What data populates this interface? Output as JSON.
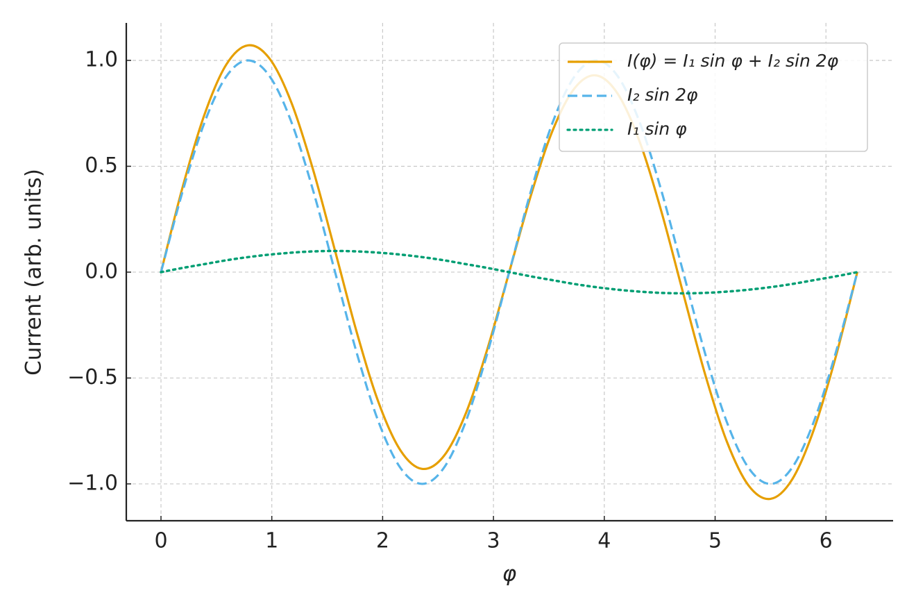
{
  "chart_data": {
    "type": "line",
    "x_label": "φ",
    "y_label": "Current (arb. units)",
    "x": [
      0,
      0.196,
      0.393,
      0.589,
      0.785,
      0.982,
      1.178,
      1.374,
      1.571,
      1.767,
      1.963,
      2.16,
      2.356,
      2.553,
      2.749,
      2.945,
      3.142,
      3.338,
      3.534,
      3.731,
      3.927,
      4.123,
      4.32,
      4.516,
      4.712,
      4.909,
      5.105,
      5.301,
      5.498,
      5.694,
      5.89,
      6.087,
      6.283
    ],
    "series": [
      {
        "name": "I(φ) = I₁ sin φ + I₂ sin 2φ",
        "color": "#e69f00",
        "dash": "solid",
        "values": [
          0,
          0.403,
          0.745,
          0.98,
          1.071,
          1.007,
          0.799,
          0.481,
          0.1,
          -0.285,
          -0.615,
          -0.841,
          -0.929,
          -0.868,
          -0.669,
          -0.363,
          0,
          0.363,
          0.669,
          0.868,
          0.929,
          0.841,
          0.615,
          0.285,
          -0.1,
          -0.481,
          -0.799,
          -1.007,
          -1.071,
          -0.98,
          -0.745,
          -0.403,
          0
        ]
      },
      {
        "name": "I₂ sin 2φ",
        "color": "#56b4e9",
        "dash": "dashed",
        "values": [
          0,
          0.383,
          0.707,
          0.924,
          1,
          0.924,
          0.707,
          0.383,
          0,
          -0.383,
          -0.707,
          -0.924,
          -1,
          -0.924,
          -0.707,
          -0.383,
          0,
          0.383,
          0.707,
          0.924,
          1,
          0.924,
          0.707,
          0.383,
          0,
          -0.383,
          -0.707,
          -0.924,
          -1,
          -0.924,
          -0.707,
          -0.383,
          0
        ]
      },
      {
        "name": "I₁ sin φ",
        "color": "#009e73",
        "dash": "dotted",
        "values": [
          0,
          0.02,
          0.038,
          0.056,
          0.071,
          0.083,
          0.092,
          0.098,
          0.1,
          0.098,
          0.092,
          0.083,
          0.071,
          0.056,
          0.038,
          0.02,
          0,
          -0.02,
          -0.038,
          -0.056,
          -0.071,
          -0.083,
          -0.092,
          -0.098,
          -0.1,
          -0.098,
          -0.092,
          -0.083,
          -0.071,
          -0.056,
          -0.038,
          -0.02,
          0
        ]
      }
    ],
    "xlim": [
      -0.313,
      6.606
    ],
    "ylim": [
      -1.174,
      1.177
    ],
    "xticks": [
      0,
      1,
      2,
      3,
      4,
      5,
      6
    ],
    "yticks": [
      {
        "value": -1,
        "label": "−1.0"
      },
      {
        "value": -0.5,
        "label": "−0.5"
      },
      {
        "value": 0,
        "label": "0.0"
      },
      {
        "value": 0.5,
        "label": "0.5"
      },
      {
        "value": 1,
        "label": "1.0"
      }
    ],
    "grid": true,
    "legend": "upper right"
  }
}
